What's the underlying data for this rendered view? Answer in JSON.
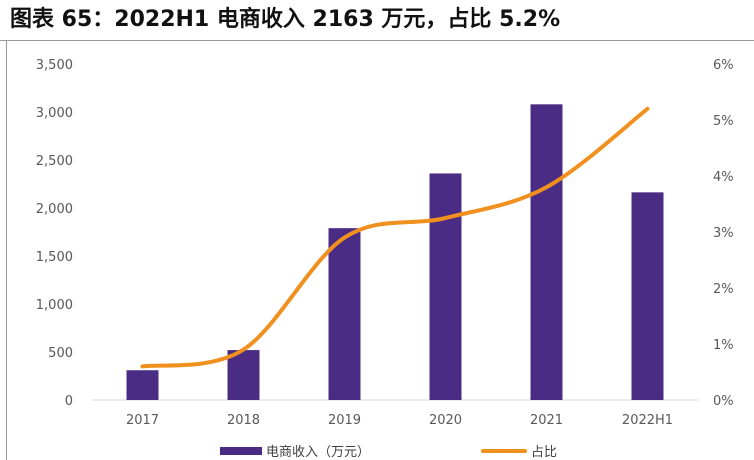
{
  "title": "图表 65：2022H1 电商收入 2163 万元，占比 5.2%",
  "colors": {
    "bar": "#4B2C84",
    "line": "#F0901E",
    "axis": "#D9D9D9"
  },
  "chart_data": {
    "type": "bar",
    "categories": [
      "2017",
      "2018",
      "2019",
      "2020",
      "2021",
      "2022H1"
    ],
    "series": [
      {
        "name": "电商收入（万元）",
        "type": "bar",
        "axis": "left",
        "values": [
          310,
          520,
          1790,
          2360,
          3080,
          2163
        ]
      },
      {
        "name": "占比",
        "type": "line",
        "axis": "right",
        "values": [
          0.6,
          0.9,
          2.9,
          3.25,
          3.8,
          5.2
        ]
      }
    ],
    "y_left": {
      "min": 0,
      "max": 3500,
      "ticks": [
        {
          "value": 0,
          "label": "0"
        },
        {
          "value": 500,
          "label": "500"
        },
        {
          "value": 1000,
          "label": "1,000"
        },
        {
          "value": 1500,
          "label": "1,500"
        },
        {
          "value": 2000,
          "label": "2,000"
        },
        {
          "value": 2500,
          "label": "2,500"
        },
        {
          "value": 3000,
          "label": "3,000"
        },
        {
          "value": 3500,
          "label": "3,500"
        }
      ]
    },
    "y_right": {
      "min": 0,
      "max": 6,
      "ticks": [
        {
          "value": 0,
          "label": "0%"
        },
        {
          "value": 1,
          "label": "1%"
        },
        {
          "value": 2,
          "label": "2%"
        },
        {
          "value": 3,
          "label": "3%"
        },
        {
          "value": 4,
          "label": "4%"
        },
        {
          "value": 5,
          "label": "5%"
        },
        {
          "value": 6,
          "label": "6%"
        }
      ]
    },
    "grid": false,
    "legend": "bottom"
  }
}
